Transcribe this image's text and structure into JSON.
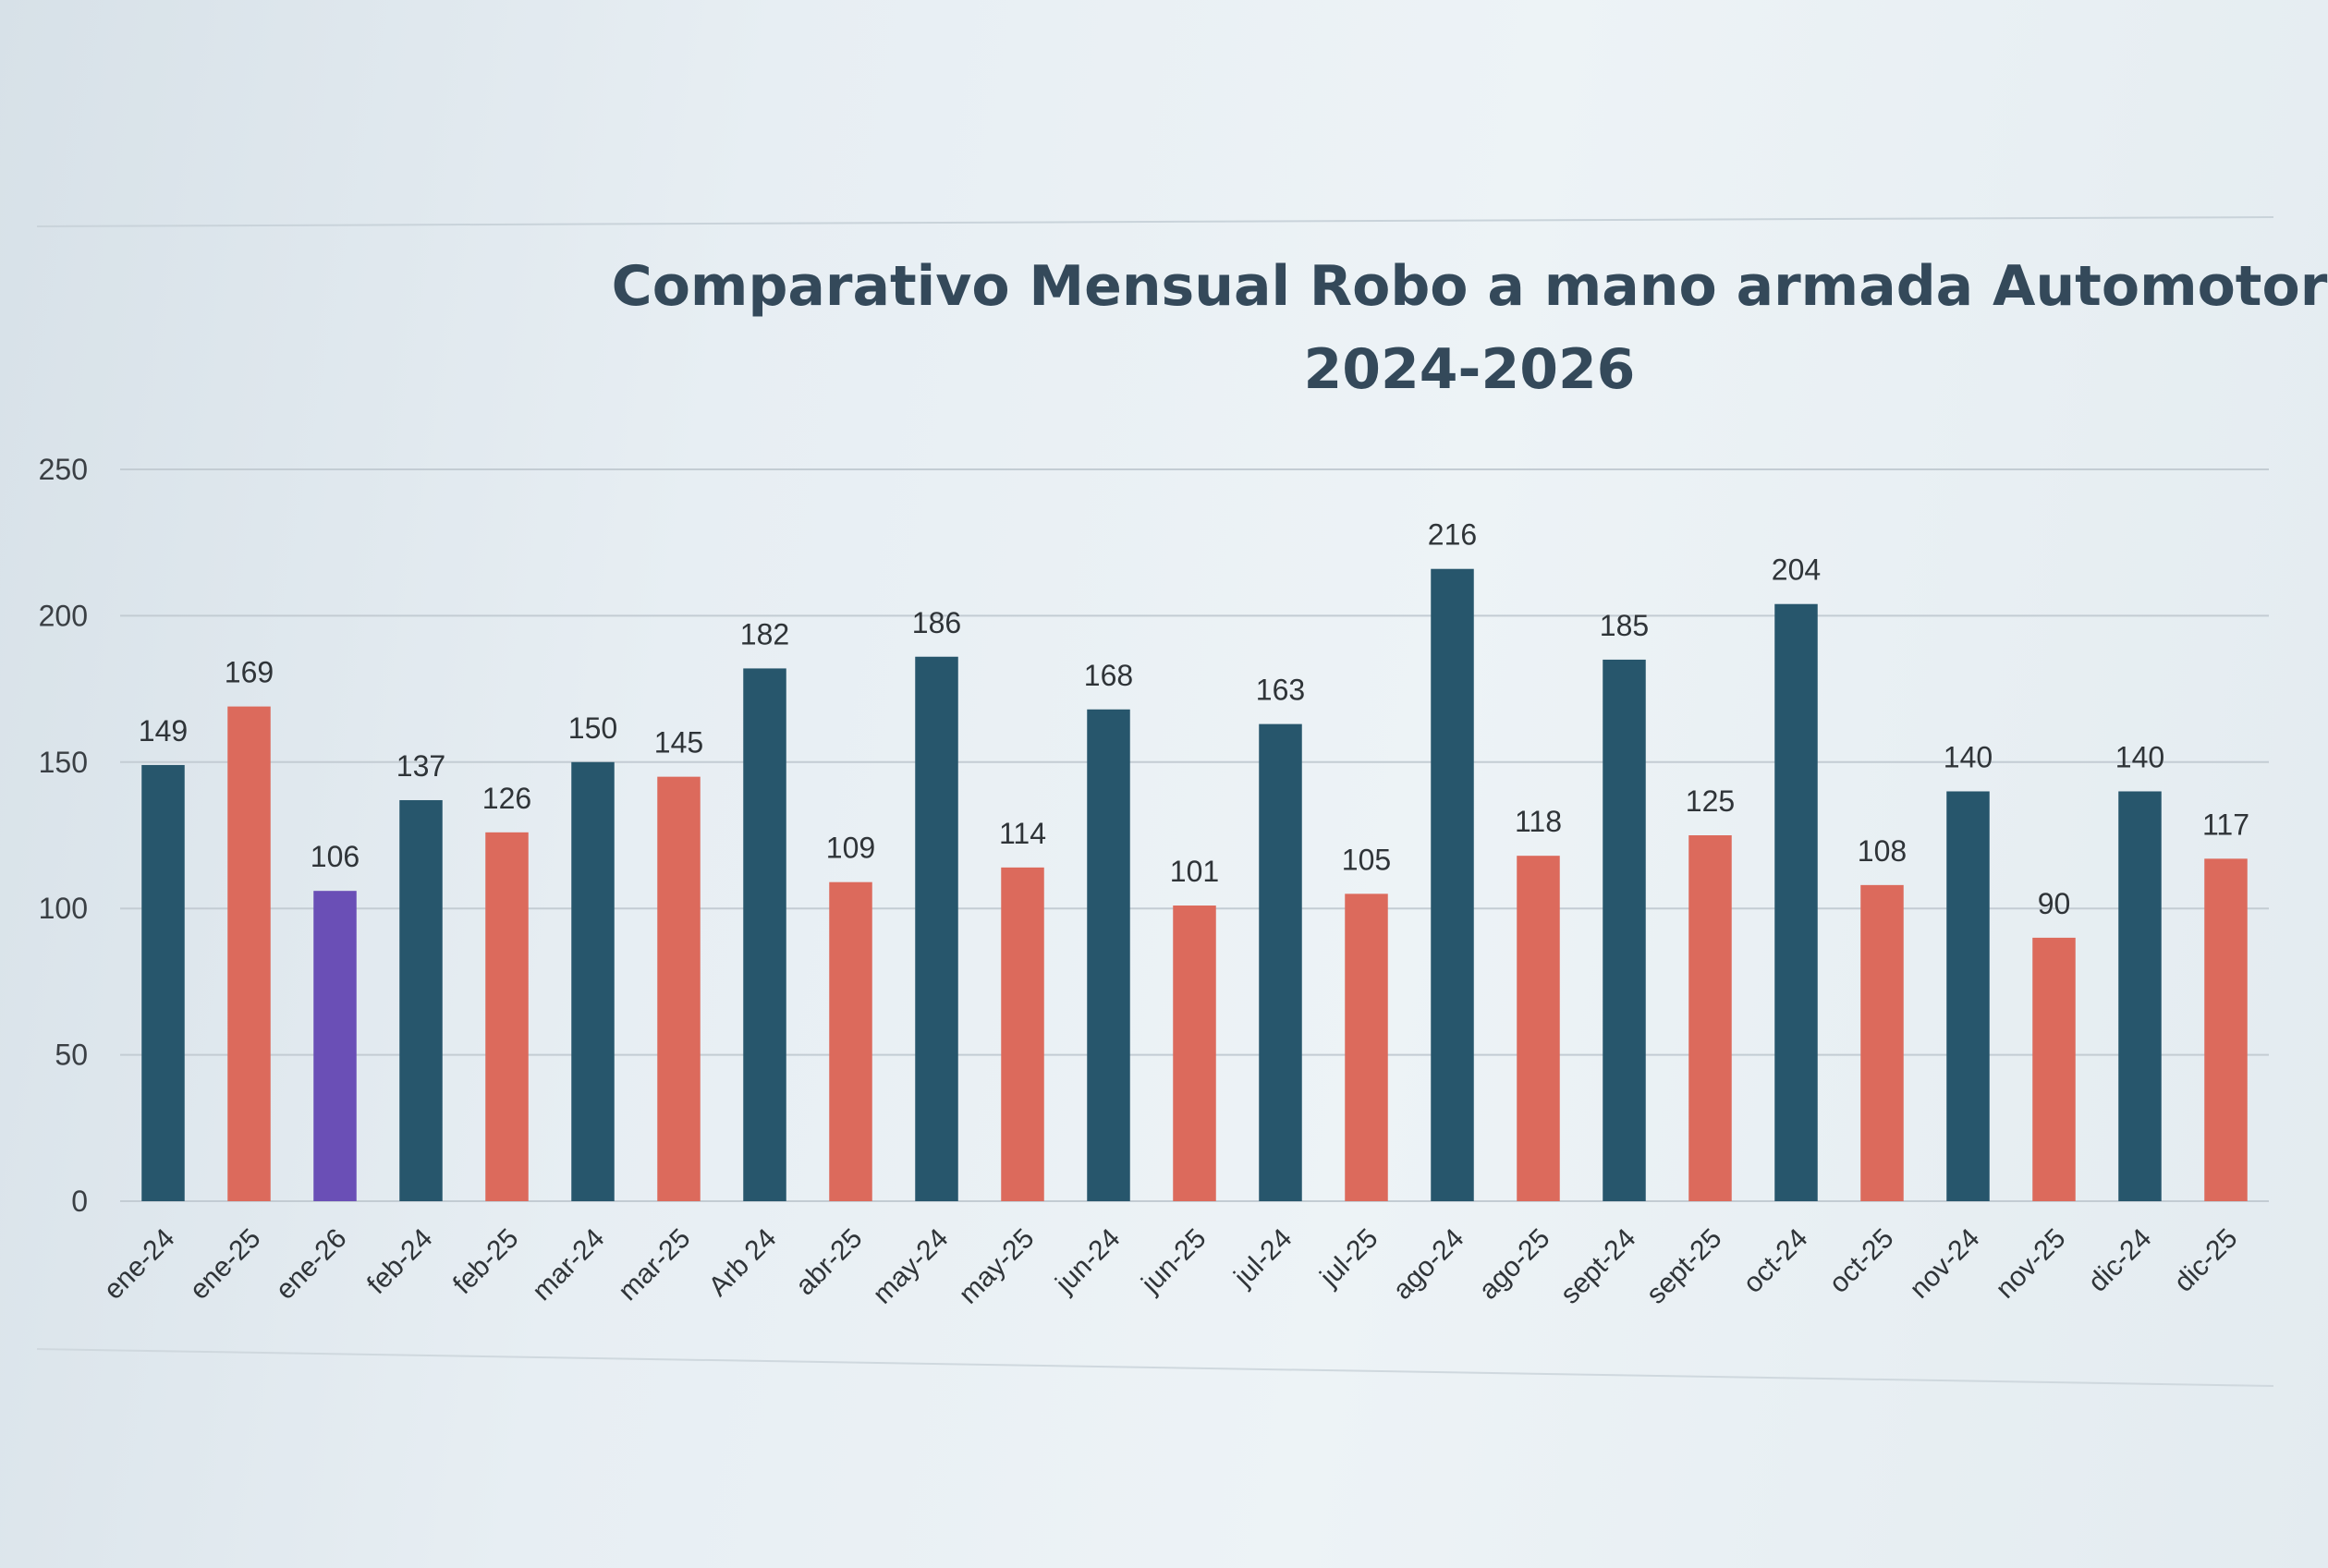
{
  "chart_data": {
    "type": "bar",
    "title": "Comparativo Mensual Robo a mano armada Automotor",
    "subtitle": "2024-2026",
    "xlabel": "",
    "ylabel": "",
    "ylim": [
      0,
      250
    ],
    "yticks": [
      "0",
      "50",
      "100",
      "150",
      "200",
      "250"
    ],
    "grid": true,
    "legend": "none",
    "categories": [
      "ene-24",
      "ene-25",
      "ene-26",
      "feb-24",
      "feb-25",
      "mar-24",
      "mar-25",
      "Arb 24",
      "abr-25",
      "may-24",
      "may-25",
      "jun-24",
      "jun-25",
      "jul-24",
      "jul-25",
      "ago-24",
      "ago-25",
      "sept-24",
      "sept-25",
      "oct-24",
      "oct-25",
      "nov-24",
      "nov-25",
      "dic-24",
      "dic-25"
    ],
    "values": [
      149,
      169,
      106,
      137,
      126,
      150,
      145,
      182,
      109,
      186,
      114,
      168,
      101,
      163,
      105,
      216,
      118,
      185,
      125,
      204,
      108,
      140,
      90,
      140,
      117
    ],
    "data_labels": [
      "149",
      "169",
      "106",
      "137",
      "126",
      "150",
      "145",
      "182",
      "109",
      "186",
      "114",
      "168",
      "101",
      "163",
      "105",
      "216",
      "118",
      "185",
      "125",
      "204",
      "108",
      "140",
      "90",
      "140",
      "117"
    ],
    "colors": {
      "2024": "#27566c",
      "2025": "#dc6a5c",
      "2026": "#6a4fb6"
    },
    "bar_years": [
      "2024",
      "2025",
      "2026",
      "2024",
      "2025",
      "2024",
      "2025",
      "2024",
      "2025",
      "2024",
      "2025",
      "2024",
      "2025",
      "2024",
      "2025",
      "2024",
      "2025",
      "2024",
      "2025",
      "2024",
      "2025",
      "2024",
      "2025",
      "2024",
      "2025"
    ]
  }
}
